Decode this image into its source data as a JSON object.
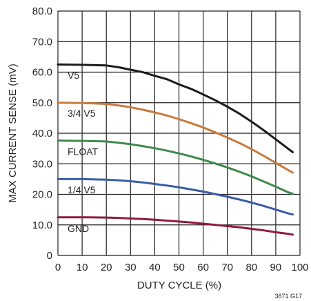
{
  "chart_data": {
    "type": "line",
    "title": "",
    "xlabel": "DUTY CYCLE (%)",
    "ylabel": "MAX CURRENT SENSE (mV)",
    "xlim": [
      0,
      100
    ],
    "ylim": [
      0,
      80
    ],
    "x_ticks": [
      "0",
      "10",
      "20",
      "30",
      "40",
      "50",
      "60",
      "70",
      "80",
      "90",
      "100"
    ],
    "y_ticks": [
      "0",
      "10.0",
      "20.0",
      "30.0",
      "40.0",
      "50.0",
      "60.0",
      "70.0",
      "80.0"
    ],
    "x_tick_values": [
      0,
      10,
      20,
      30,
      40,
      50,
      60,
      70,
      80,
      90,
      100
    ],
    "y_tick_values": [
      0,
      10,
      20,
      30,
      40,
      50,
      60,
      70,
      80
    ],
    "grid": true,
    "figure_id": "3871 G17",
    "series": [
      {
        "name": "V5",
        "color": "#1a1a1a",
        "x": [
          0,
          10,
          20,
          25,
          30,
          35,
          40,
          45,
          50,
          55,
          60,
          65,
          70,
          75,
          80,
          85,
          90,
          95,
          97
        ],
        "y": [
          62.5,
          62.4,
          62.2,
          61.6,
          60.8,
          60.0,
          58.8,
          57.7,
          56.0,
          54.5,
          52.7,
          50.8,
          48.7,
          46.4,
          43.8,
          41.0,
          38.0,
          35.0,
          33.8
        ]
      },
      {
        "name": "3/4 V5",
        "color": "#c87a3c",
        "x": [
          0,
          10,
          20,
          25,
          30,
          35,
          40,
          45,
          50,
          55,
          60,
          65,
          70,
          75,
          80,
          85,
          90,
          95,
          97
        ],
        "y": [
          50.0,
          49.9,
          49.6,
          49.1,
          48.5,
          47.7,
          46.8,
          45.8,
          44.6,
          43.3,
          41.9,
          40.3,
          38.6,
          36.8,
          34.8,
          32.6,
          30.3,
          28.0,
          27.1
        ]
      },
      {
        "name": "FLOAT",
        "color": "#3f8a4a",
        "x": [
          0,
          10,
          20,
          25,
          30,
          35,
          40,
          45,
          50,
          55,
          60,
          65,
          70,
          75,
          80,
          85,
          90,
          95,
          97
        ],
        "y": [
          37.6,
          37.5,
          37.3,
          36.9,
          36.4,
          35.8,
          35.1,
          34.3,
          33.4,
          32.4,
          31.3,
          30.1,
          28.8,
          27.4,
          25.9,
          24.2,
          22.5,
          20.7,
          20.2
        ]
      },
      {
        "name": "1/4 V5",
        "color": "#3a5ba8",
        "x": [
          0,
          10,
          20,
          25,
          30,
          35,
          40,
          45,
          50,
          55,
          60,
          65,
          70,
          75,
          80,
          85,
          90,
          95,
          97
        ],
        "y": [
          25.0,
          25.0,
          24.8,
          24.6,
          24.3,
          23.9,
          23.4,
          22.9,
          22.3,
          21.6,
          20.9,
          20.1,
          19.2,
          18.3,
          17.3,
          16.2,
          15.0,
          13.8,
          13.4
        ]
      },
      {
        "name": "GND",
        "color": "#8e1b3a",
        "x": [
          0,
          10,
          20,
          25,
          30,
          35,
          40,
          45,
          50,
          55,
          60,
          65,
          70,
          75,
          80,
          85,
          90,
          95,
          97
        ],
        "y": [
          12.5,
          12.5,
          12.4,
          12.3,
          12.1,
          11.9,
          11.7,
          11.4,
          11.1,
          10.8,
          10.4,
          10.0,
          9.6,
          9.2,
          8.7,
          8.2,
          7.6,
          7.1,
          6.8
        ]
      }
    ]
  }
}
